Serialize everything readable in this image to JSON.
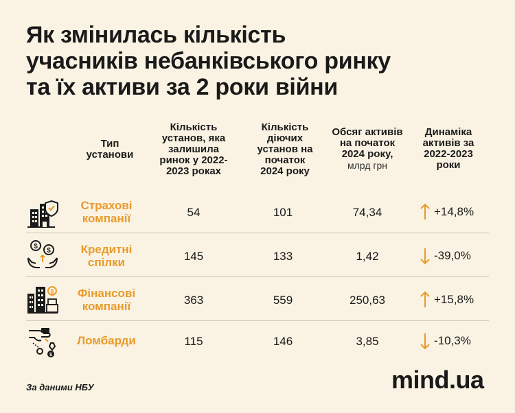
{
  "title": {
    "line1": "Як змінилась кількість",
    "line2": "учасників небанківського ринку",
    "line3": "та їх активи за 2 роки війни"
  },
  "headers": {
    "type": [
      "Тип",
      "установи"
    ],
    "remaining": [
      "Кількість",
      "установ, яка",
      "залишила",
      "ринок у 2022-",
      "2023 роках"
    ],
    "active": [
      "Кількість",
      "діючих",
      "установ на",
      "початок",
      "2024 року"
    ],
    "assets": [
      "Обсяг активів",
      "на початок",
      "2024 року,"
    ],
    "assets_unit": "млрд грн",
    "dynamics": [
      "Динаміка",
      "активів за",
      "2022-2023",
      "роки"
    ]
  },
  "rows": [
    {
      "name": [
        "Страхові",
        "компанії"
      ],
      "remaining": "54",
      "active": "101",
      "assets": "74,34",
      "dynamics": "+14,8%",
      "direction": "up"
    },
    {
      "name": [
        "Кредитні",
        "спілки"
      ],
      "remaining": "145",
      "active": "133",
      "assets": "1,42",
      "dynamics": "-39,0%",
      "direction": "down"
    },
    {
      "name": [
        "Фінансові",
        "компанії"
      ],
      "remaining": "363",
      "active": "559",
      "assets": "250,63",
      "dynamics": "+15,8%",
      "direction": "up"
    },
    {
      "name": [
        "Ломбарди"
      ],
      "remaining": "115",
      "active": "146",
      "assets": "3,85",
      "dynamics": "-10,3%",
      "direction": "down"
    }
  ],
  "source": "За даними НБУ",
  "logo": "mind.ua",
  "colors": {
    "accent": "#e99a2b",
    "background": "#faf3e3",
    "text": "#1a1a1a"
  }
}
